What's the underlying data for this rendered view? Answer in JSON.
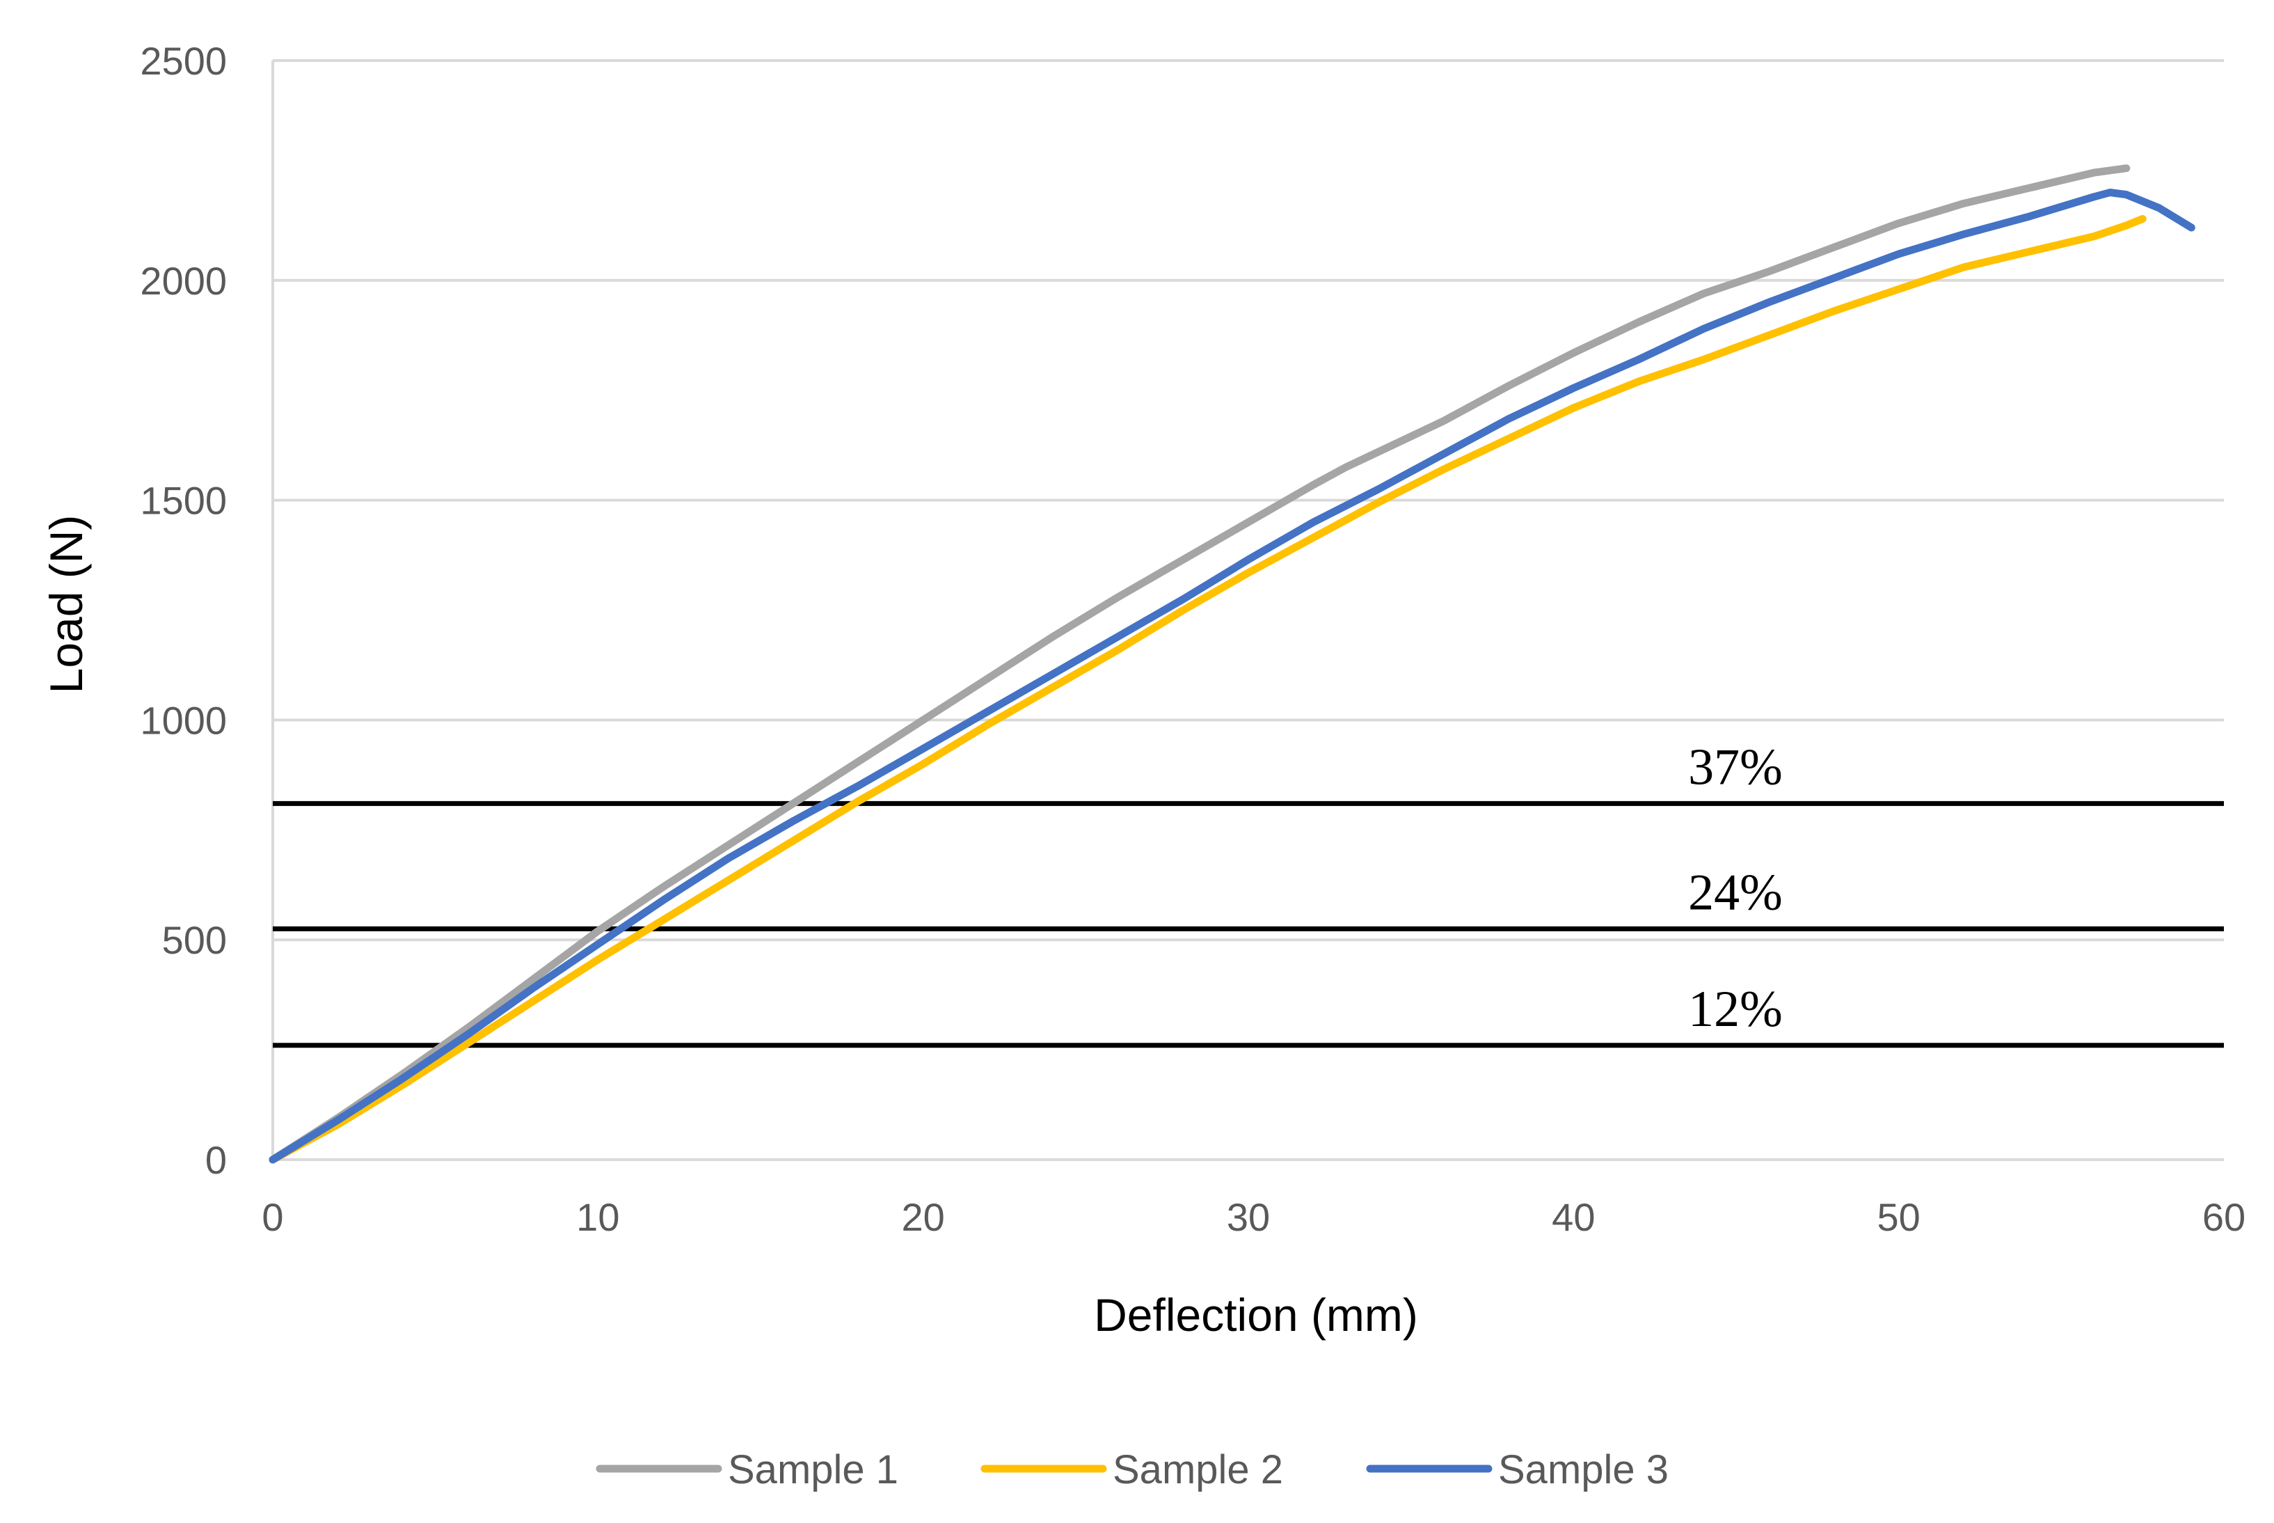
{
  "chart_data": {
    "type": "line",
    "title": "",
    "xlabel": "Deflection (mm)",
    "ylabel": "Load (N)",
    "xlim": [
      0,
      60
    ],
    "ylim": [
      0,
      2500
    ],
    "xticks": [
      "0",
      "10",
      "20",
      "30",
      "40",
      "50",
      "60"
    ],
    "yticks": [
      "0",
      "500",
      "1000",
      "1500",
      "2000",
      "2500"
    ],
    "grid": "horizontal",
    "legend_position": "bottom",
    "series": [
      {
        "name": "Sample 1",
        "color": "#A5A5A5",
        "x": [
          0,
          2,
          4,
          6,
          8,
          10,
          12,
          14,
          16,
          18,
          20,
          22,
          24,
          26,
          28,
          30,
          32,
          33,
          34,
          35,
          36,
          38,
          40,
          42,
          44,
          46,
          48,
          50,
          52,
          54,
          56,
          57
        ],
        "y": [
          0,
          95,
          195,
          300,
          410,
          520,
          620,
          715,
          810,
          905,
          1000,
          1095,
          1190,
          1280,
          1365,
          1450,
          1535,
          1575,
          1610,
          1645,
          1680,
          1760,
          1835,
          1905,
          1970,
          2020,
          2075,
          2130,
          2175,
          2210,
          2245,
          2255
        ]
      },
      {
        "name": "Sample 2",
        "color": "#FFC000",
        "x": [
          0,
          2,
          4,
          6,
          8,
          10,
          12,
          14,
          16,
          18,
          20,
          22,
          24,
          26,
          28,
          30,
          32,
          34,
          36,
          38,
          40,
          42,
          44,
          46,
          48,
          50,
          52,
          54,
          56,
          57,
          57.5
        ],
        "y": [
          0,
          80,
          170,
          265,
          360,
          455,
          545,
          635,
          725,
          815,
          900,
          990,
          1075,
          1160,
          1250,
          1335,
          1415,
          1495,
          1570,
          1640,
          1710,
          1770,
          1820,
          1875,
          1930,
          1980,
          2030,
          2065,
          2100,
          2125,
          2140
        ]
      },
      {
        "name": "Sample 3",
        "color": "#4472C4",
        "x": [
          0,
          2,
          4,
          6,
          8,
          10,
          12,
          14,
          16,
          18,
          20,
          22,
          24,
          26,
          28,
          30,
          32,
          34,
          36,
          38,
          40,
          42,
          44,
          46,
          48,
          50,
          52,
          54,
          56,
          56.5,
          57,
          58,
          59
        ],
        "y": [
          0,
          90,
          185,
          285,
          390,
          490,
          590,
          685,
          770,
          850,
          935,
          1020,
          1105,
          1190,
          1275,
          1365,
          1450,
          1525,
          1605,
          1685,
          1755,
          1820,
          1890,
          1950,
          2005,
          2060,
          2105,
          2145,
          2190,
          2200,
          2195,
          2165,
          2120
        ]
      }
    ],
    "reference_lines": [
      {
        "label": "37%",
        "y": 810
      },
      {
        "label": "24%",
        "y": 525
      },
      {
        "label": "12%",
        "y": 260
      }
    ]
  }
}
